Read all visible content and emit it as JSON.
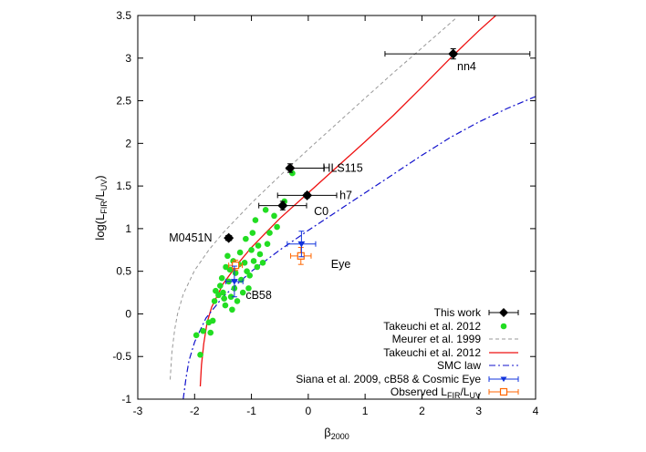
{
  "chart_data": {
    "type": "scatter",
    "xlabel": "β",
    "xlabel_sub": "2000",
    "ylabel": "log(L",
    "ylabel_sub1": "FIR",
    "ylabel_mid": "/L",
    "ylabel_sub2": "UV",
    "ylabel_end": ")",
    "xlim": [
      -3,
      4
    ],
    "ylim": [
      -1,
      3.5
    ],
    "x_ticks": [
      -3,
      -2,
      -1,
      0,
      1,
      2,
      3,
      4
    ],
    "x_tick_labels": [
      "-3",
      "-2",
      "-1",
      "0",
      "1",
      "2",
      "3",
      "4"
    ],
    "y_ticks": [
      -1,
      -0.5,
      0,
      0.5,
      1,
      1.5,
      2,
      2.5,
      3,
      3.5
    ],
    "y_tick_labels": [
      "-1",
      "-0.5",
      "0",
      "0.5",
      "1",
      "1.5",
      "2",
      "2.5",
      "3",
      "3.5"
    ],
    "grid": false,
    "legend_position": "bottom-right",
    "colors": {
      "this_work": "#000000",
      "takeuchi_points": "#22dd22",
      "meurer": "#999999",
      "takeuchi_curve": "#ee1111",
      "smc": "#1111cc",
      "siana": "#1133dd",
      "observed": "#ff6600"
    },
    "series": [
      {
        "name": "This work",
        "marker": "diamond",
        "points": [
          {
            "label": "nn4",
            "x": 2.55,
            "y": 3.05,
            "xerr": [
              1.2,
              1.35
            ],
            "yerr": [
              0.06,
              0.06
            ]
          },
          {
            "label": "HLS115",
            "x": -0.32,
            "y": 1.71,
            "xerr": [
              0.0,
              0.6
            ],
            "yerr": [
              0.05,
              0.05
            ]
          },
          {
            "label": "h7",
            "x": -0.02,
            "y": 1.39,
            "xerr": [
              0.52,
              0.52
            ],
            "yerr": [
              0.03,
              0.03
            ]
          },
          {
            "label": "C0",
            "x": -0.45,
            "y": 1.27,
            "xerr": [
              0.42,
              0.42
            ],
            "yerr": [
              0.05,
              0.05
            ]
          },
          {
            "label": "M0451N",
            "x": -1.4,
            "y": 0.89,
            "xerr": [
              0.05,
              0.05
            ],
            "yerr": [
              0.03,
              0.03
            ]
          }
        ]
      },
      {
        "name": "Takeuchi et al. 2012",
        "marker": "dot",
        "points": [
          {
            "x": -1.97,
            "y": -0.25
          },
          {
            "x": -1.9,
            "y": -0.48
          },
          {
            "x": -1.85,
            "y": -0.2
          },
          {
            "x": -1.75,
            "y": -0.1
          },
          {
            "x": -1.72,
            "y": -0.22
          },
          {
            "x": -1.68,
            "y": -0.08
          },
          {
            "x": -1.65,
            "y": 0.15
          },
          {
            "x": -1.63,
            "y": 0.27
          },
          {
            "x": -1.58,
            "y": 0.22
          },
          {
            "x": -1.55,
            "y": 0.33
          },
          {
            "x": -1.52,
            "y": 0.42
          },
          {
            "x": -1.5,
            "y": 0.25
          },
          {
            "x": -1.48,
            "y": 0.18
          },
          {
            "x": -1.46,
            "y": 0.1
          },
          {
            "x": -1.45,
            "y": 0.55
          },
          {
            "x": -1.42,
            "y": 0.68
          },
          {
            "x": -1.4,
            "y": 0.38
          },
          {
            "x": -1.38,
            "y": 0.52
          },
          {
            "x": -1.36,
            "y": 0.2
          },
          {
            "x": -1.34,
            "y": 0.05
          },
          {
            "x": -1.32,
            "y": 0.62
          },
          {
            "x": -1.3,
            "y": 0.3
          },
          {
            "x": -1.28,
            "y": 0.48
          },
          {
            "x": -1.25,
            "y": 0.15
          },
          {
            "x": -1.22,
            "y": 0.58
          },
          {
            "x": -1.2,
            "y": 0.72
          },
          {
            "x": -1.18,
            "y": 0.4
          },
          {
            "x": -1.15,
            "y": 0.25
          },
          {
            "x": -1.12,
            "y": 0.6
          },
          {
            "x": -1.1,
            "y": 0.88
          },
          {
            "x": -1.08,
            "y": 0.5
          },
          {
            "x": -1.05,
            "y": 0.3
          },
          {
            "x": -1.03,
            "y": 0.45
          },
          {
            "x": -1.0,
            "y": 0.75
          },
          {
            "x": -0.98,
            "y": 0.95
          },
          {
            "x": -0.96,
            "y": 0.62
          },
          {
            "x": -0.93,
            "y": 1.1
          },
          {
            "x": -0.9,
            "y": 0.55
          },
          {
            "x": -0.88,
            "y": 0.8
          },
          {
            "x": -0.85,
            "y": 0.7
          },
          {
            "x": -0.8,
            "y": 0.6
          },
          {
            "x": -0.75,
            "y": 1.22
          },
          {
            "x": -0.72,
            "y": 0.82
          },
          {
            "x": -0.68,
            "y": 0.95
          },
          {
            "x": -0.6,
            "y": 1.15
          },
          {
            "x": -0.55,
            "y": 1.02
          },
          {
            "x": -0.42,
            "y": 1.32
          },
          {
            "x": -0.28,
            "y": 1.65
          }
        ]
      },
      {
        "name": "Meurer et al. 1999",
        "line": "dashed",
        "points": [
          {
            "x": -2.43,
            "y": -0.77
          },
          {
            "x": -2.4,
            "y": -0.45
          },
          {
            "x": -2.35,
            "y": -0.18
          },
          {
            "x": -2.3,
            "y": 0.0
          },
          {
            "x": -2.2,
            "y": 0.23
          },
          {
            "x": -2.0,
            "y": 0.51
          },
          {
            "x": -1.75,
            "y": 0.75
          },
          {
            "x": -1.5,
            "y": 0.95
          },
          {
            "x": -1.0,
            "y": 1.3
          },
          {
            "x": -0.5,
            "y": 1.62
          },
          {
            "x": 0.0,
            "y": 1.93
          },
          {
            "x": 0.5,
            "y": 2.23
          },
          {
            "x": 1.0,
            "y": 2.53
          },
          {
            "x": 1.5,
            "y": 2.83
          },
          {
            "x": 2.0,
            "y": 3.12
          },
          {
            "x": 2.6,
            "y": 3.47
          }
        ]
      },
      {
        "name": "Takeuchi et al. 2012",
        "line": "solid",
        "points": [
          {
            "x": -1.9,
            "y": -0.85
          },
          {
            "x": -1.88,
            "y": -0.6
          },
          {
            "x": -1.84,
            "y": -0.35
          },
          {
            "x": -1.78,
            "y": -0.1
          },
          {
            "x": -1.7,
            "y": 0.08
          },
          {
            "x": -1.5,
            "y": 0.35
          },
          {
            "x": -1.25,
            "y": 0.58
          },
          {
            "x": -1.0,
            "y": 0.78
          },
          {
            "x": -0.5,
            "y": 1.12
          },
          {
            "x": 0.0,
            "y": 1.42
          },
          {
            "x": 0.5,
            "y": 1.72
          },
          {
            "x": 1.0,
            "y": 2.02
          },
          {
            "x": 1.5,
            "y": 2.33
          },
          {
            "x": 2.0,
            "y": 2.66
          },
          {
            "x": 2.5,
            "y": 3.0
          },
          {
            "x": 3.0,
            "y": 3.32
          },
          {
            "x": 3.3,
            "y": 3.5
          }
        ]
      },
      {
        "name": "SMC law",
        "line": "dashdot",
        "points": [
          {
            "x": -2.2,
            "y": -1.0
          },
          {
            "x": -2.15,
            "y": -0.75
          },
          {
            "x": -2.1,
            "y": -0.55
          },
          {
            "x": -2.0,
            "y": -0.33
          },
          {
            "x": -1.8,
            "y": -0.05
          },
          {
            "x": -1.5,
            "y": 0.2
          },
          {
            "x": -1.0,
            "y": 0.5
          },
          {
            "x": -0.5,
            "y": 0.75
          },
          {
            "x": 0.0,
            "y": 0.98
          },
          {
            "x": 0.5,
            "y": 1.2
          },
          {
            "x": 1.0,
            "y": 1.42
          },
          {
            "x": 1.5,
            "y": 1.64
          },
          {
            "x": 2.0,
            "y": 1.86
          },
          {
            "x": 2.5,
            "y": 2.07
          },
          {
            "x": 3.0,
            "y": 2.25
          },
          {
            "x": 3.5,
            "y": 2.41
          },
          {
            "x": 4.0,
            "y": 2.55
          }
        ]
      },
      {
        "name": "Siana et al. 2009, cB58 & Cosmic Eye",
        "marker": "triangle-down",
        "points": [
          {
            "label": "cB58",
            "x": -1.3,
            "y": 0.38,
            "xerr": [
              0.15,
              0.15
            ],
            "yerr": [
              0.18,
              0.18
            ]
          },
          {
            "label": "Eye",
            "x": -0.12,
            "y": 0.82,
            "xerr": [
              0.25,
              0.25
            ],
            "yerr": [
              0.15,
              0.15
            ]
          }
        ]
      },
      {
        "name": "Observed L",
        "name_sub1": "FIR",
        "name_mid": "/L",
        "name_sub2": "UV",
        "marker": "open-square",
        "points": [
          {
            "x": -1.28,
            "y": 0.57,
            "xerr": [
              0.12,
              0.12
            ],
            "yerr": [
              0.06,
              0.06
            ]
          },
          {
            "x": -0.13,
            "y": 0.68,
            "xerr": [
              0.18,
              0.18
            ],
            "yerr": [
              0.1,
              0.1
            ]
          }
        ]
      }
    ],
    "annotations": [
      {
        "text": "nn4",
        "x": 2.62,
        "y": 2.9
      },
      {
        "text": "HLS115",
        "x": 0.25,
        "y": 1.71
      },
      {
        "text": "h7",
        "x": 0.55,
        "y": 1.39
      },
      {
        "text": "C0",
        "x": 0.1,
        "y": 1.2
      },
      {
        "text": "M0451N",
        "x": -2.45,
        "y": 0.89
      },
      {
        "text": "Eye",
        "x": 0.4,
        "y": 0.58
      },
      {
        "text": "cB58",
        "x": -1.1,
        "y": 0.22
      }
    ]
  }
}
